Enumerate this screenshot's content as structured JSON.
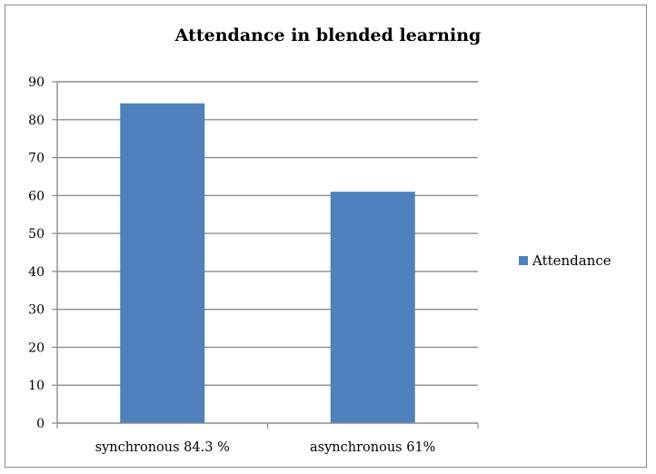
{
  "chart_data": {
    "type": "bar",
    "title": "Attendance in blended learning",
    "categories": [
      "synchronous 84.3 %",
      "asynchronous 61%"
    ],
    "series": [
      {
        "name": "Attendance",
        "values": [
          84.3,
          61
        ],
        "color": "#4f81bd"
      }
    ],
    "ylim": [
      0,
      90
    ],
    "yticks": [
      0,
      10,
      20,
      30,
      40,
      50,
      60,
      70,
      80,
      90
    ],
    "grid": true,
    "legend": "right"
  }
}
